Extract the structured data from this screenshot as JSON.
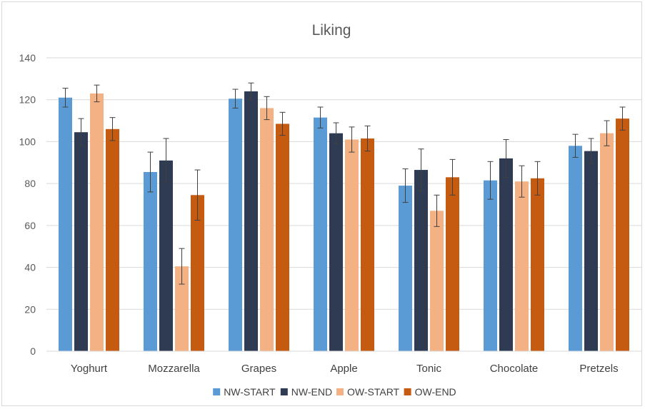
{
  "chart_data": {
    "type": "bar",
    "title": "Liking",
    "categories": [
      "Yoghurt",
      "Mozzarella",
      "Grapes",
      "Apple",
      "Tonic",
      "Chocolate",
      "Pretzels"
    ],
    "series": [
      {
        "name": "NW-START",
        "color": "#5b9bd5",
        "values": [
          121,
          85.5,
          120.5,
          111.5,
          79,
          81.5,
          98
        ],
        "errors": [
          4.5,
          9.5,
          4.5,
          5,
          8,
          9,
          5.5
        ]
      },
      {
        "name": "NW-END",
        "color": "#2e3b52",
        "values": [
          104.5,
          91,
          124,
          104,
          86.5,
          92,
          95.5
        ],
        "errors": [
          6.5,
          10.5,
          4,
          5,
          10,
          9,
          6
        ]
      },
      {
        "name": "OW-START",
        "color": "#f4b183",
        "values": [
          123,
          40.5,
          116,
          101,
          67,
          81,
          104
        ],
        "errors": [
          4,
          8.5,
          5.5,
          6,
          7.5,
          7.5,
          6
        ]
      },
      {
        "name": "OW-END",
        "color": "#c55a11",
        "values": [
          106,
          74.5,
          108.5,
          101.5,
          83,
          82.5,
          111
        ],
        "errors": [
          5.5,
          12,
          5.5,
          6,
          8.5,
          8,
          5.5
        ]
      }
    ],
    "ylim": [
      0,
      140
    ],
    "yticks": [
      0,
      20,
      40,
      60,
      80,
      100,
      120,
      140
    ],
    "grid": true,
    "legend_position": "bottom",
    "xlabel": "",
    "ylabel": ""
  }
}
